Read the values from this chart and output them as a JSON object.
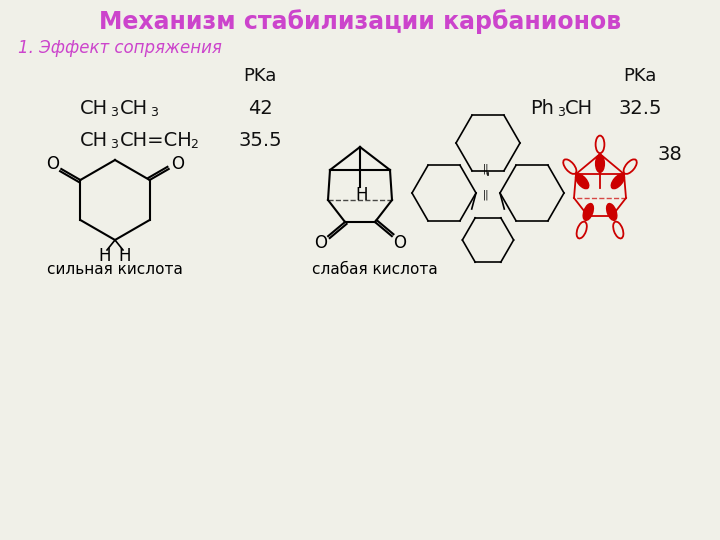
{
  "title": "Механизм стабилизации карбанионов",
  "title_color": "#cc44cc",
  "subtitle": "1. Эффект сопряжения",
  "subtitle_color": "#cc44cc",
  "bg_color": "#f0f0e8",
  "text_color": "#111111",
  "red_color": "#cc0000",
  "pka_label": "PKa",
  "row1_pka": "42",
  "row2_pka": "35.5",
  "right_pka_label": "PKa",
  "right_pka": "32.5",
  "right_pka2": "38",
  "label_strong": "сильная кислота",
  "label_weak": "слабая кислота"
}
